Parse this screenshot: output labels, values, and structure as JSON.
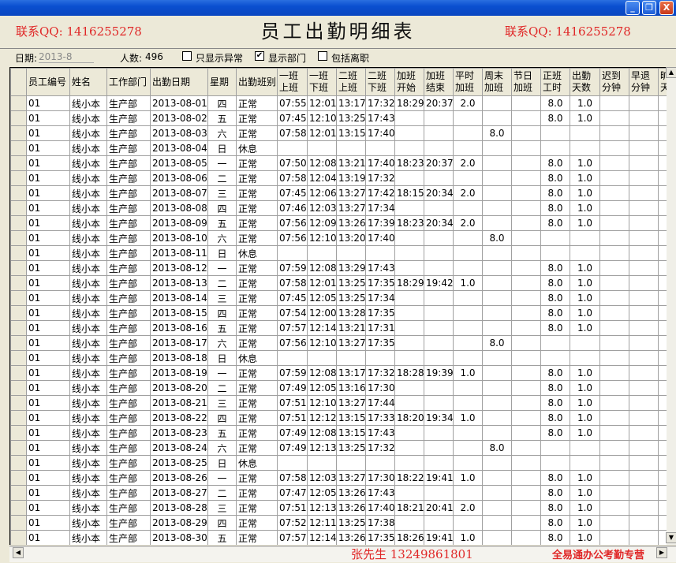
{
  "window": {
    "minimize": "_",
    "restore": "❐",
    "close": "X"
  },
  "title": "员工出勤明细表",
  "filter": {
    "date_label": "日期:",
    "date_value": "2013-8",
    "count_label": "人数:",
    "count_value": "496",
    "options": [
      {
        "label": "只显示异常",
        "checked": false
      },
      {
        "label": "显示部门",
        "checked": true
      },
      {
        "label": "包括离职",
        "checked": false
      }
    ]
  },
  "columns": [
    "员工编号",
    "姓名",
    "工作部门",
    "出勤日期",
    "星期",
    "出勤班别",
    "一班\n上班",
    "一班\n下班",
    "二班\n上班",
    "二班\n下班",
    "加班\n开始",
    "加班\n结束",
    "平时\n加班",
    "周末\n加班",
    "节日\n加班",
    "正班\n工时",
    "出勤\n天数",
    "迟到\n分钟",
    "早退\n分钟",
    "旷工\n天数"
  ],
  "rows": [
    [
      "01",
      "线小本",
      "生产部",
      "2013-08-01",
      "四",
      "正常",
      "07:55",
      "12:01",
      "13:17",
      "17:32",
      "18:29",
      "20:37",
      "2.0",
      "",
      "",
      "8.0",
      "1.0",
      "",
      "",
      ""
    ],
    [
      "01",
      "线小本",
      "生产部",
      "2013-08-02",
      "五",
      "正常",
      "07:45",
      "12:10",
      "13:25",
      "17:43",
      "",
      "",
      "",
      "",
      "",
      "8.0",
      "1.0",
      "",
      "",
      ""
    ],
    [
      "01",
      "线小本",
      "生产部",
      "2013-08-03",
      "六",
      "正常",
      "07:58",
      "12:01",
      "13:15",
      "17:40",
      "",
      "",
      "",
      "8.0",
      "",
      "",
      "",
      "",
      "",
      ""
    ],
    [
      "01",
      "线小本",
      "生产部",
      "2013-08-04",
      "日",
      "休息",
      "",
      "",
      "",
      "",
      "",
      "",
      "",
      "",
      "",
      "",
      "",
      "",
      "",
      ""
    ],
    [
      "01",
      "线小本",
      "生产部",
      "2013-08-05",
      "一",
      "正常",
      "07:50",
      "12:08",
      "13:21",
      "17:40",
      "18:23",
      "20:37",
      "2.0",
      "",
      "",
      "8.0",
      "1.0",
      "",
      "",
      ""
    ],
    [
      "01",
      "线小本",
      "生产部",
      "2013-08-06",
      "二",
      "正常",
      "07:58",
      "12:04",
      "13:19",
      "17:32",
      "",
      "",
      "",
      "",
      "",
      "8.0",
      "1.0",
      "",
      "",
      ""
    ],
    [
      "01",
      "线小本",
      "生产部",
      "2013-08-07",
      "三",
      "正常",
      "07:45",
      "12:06",
      "13:27",
      "17:42",
      "18:15",
      "20:34",
      "2.0",
      "",
      "",
      "8.0",
      "1.0",
      "",
      "",
      ""
    ],
    [
      "01",
      "线小本",
      "生产部",
      "2013-08-08",
      "四",
      "正常",
      "07:46",
      "12:03",
      "13:27",
      "17:34",
      "",
      "",
      "",
      "",
      "",
      "8.0",
      "1.0",
      "",
      "",
      ""
    ],
    [
      "01",
      "线小本",
      "生产部",
      "2013-08-09",
      "五",
      "正常",
      "07:56",
      "12:09",
      "13:26",
      "17:39",
      "18:23",
      "20:34",
      "2.0",
      "",
      "",
      "8.0",
      "1.0",
      "",
      "",
      ""
    ],
    [
      "01",
      "线小本",
      "生产部",
      "2013-08-10",
      "六",
      "正常",
      "07:56",
      "12:10",
      "13:20",
      "17:40",
      "",
      "",
      "",
      "8.0",
      "",
      "",
      "",
      "",
      "",
      ""
    ],
    [
      "01",
      "线小本",
      "生产部",
      "2013-08-11",
      "日",
      "休息",
      "",
      "",
      "",
      "",
      "",
      "",
      "",
      "",
      "",
      "",
      "",
      "",
      "",
      ""
    ],
    [
      "01",
      "线小本",
      "生产部",
      "2013-08-12",
      "一",
      "正常",
      "07:59",
      "12:08",
      "13:29",
      "17:43",
      "",
      "",
      "",
      "",
      "",
      "8.0",
      "1.0",
      "",
      "",
      ""
    ],
    [
      "01",
      "线小本",
      "生产部",
      "2013-08-13",
      "二",
      "正常",
      "07:58",
      "12:01",
      "13:25",
      "17:35",
      "18:29",
      "19:42",
      "1.0",
      "",
      "",
      "8.0",
      "1.0",
      "",
      "",
      ""
    ],
    [
      "01",
      "线小本",
      "生产部",
      "2013-08-14",
      "三",
      "正常",
      "07:45",
      "12:05",
      "13:25",
      "17:34",
      "",
      "",
      "",
      "",
      "",
      "8.0",
      "1.0",
      "",
      "",
      ""
    ],
    [
      "01",
      "线小本",
      "生产部",
      "2013-08-15",
      "四",
      "正常",
      "07:54",
      "12:00",
      "13:28",
      "17:35",
      "",
      "",
      "",
      "",
      "",
      "8.0",
      "1.0",
      "",
      "",
      ""
    ],
    [
      "01",
      "线小本",
      "生产部",
      "2013-08-16",
      "五",
      "正常",
      "07:57",
      "12:14",
      "13:21",
      "17:31",
      "",
      "",
      "",
      "",
      "",
      "8.0",
      "1.0",
      "",
      "",
      ""
    ],
    [
      "01",
      "线小本",
      "生产部",
      "2013-08-17",
      "六",
      "正常",
      "07:56",
      "12:10",
      "13:27",
      "17:35",
      "",
      "",
      "",
      "8.0",
      "",
      "",
      "",
      "",
      "",
      ""
    ],
    [
      "01",
      "线小本",
      "生产部",
      "2013-08-18",
      "日",
      "休息",
      "",
      "",
      "",
      "",
      "",
      "",
      "",
      "",
      "",
      "",
      "",
      "",
      "",
      ""
    ],
    [
      "01",
      "线小本",
      "生产部",
      "2013-08-19",
      "一",
      "正常",
      "07:59",
      "12:08",
      "13:17",
      "17:32",
      "18:28",
      "19:39",
      "1.0",
      "",
      "",
      "8.0",
      "1.0",
      "",
      "",
      ""
    ],
    [
      "01",
      "线小本",
      "生产部",
      "2013-08-20",
      "二",
      "正常",
      "07:49",
      "12:05",
      "13:16",
      "17:30",
      "",
      "",
      "",
      "",
      "",
      "8.0",
      "1.0",
      "",
      "",
      ""
    ],
    [
      "01",
      "线小本",
      "生产部",
      "2013-08-21",
      "三",
      "正常",
      "07:51",
      "12:10",
      "13:27",
      "17:44",
      "",
      "",
      "",
      "",
      "",
      "8.0",
      "1.0",
      "",
      "",
      ""
    ],
    [
      "01",
      "线小本",
      "生产部",
      "2013-08-22",
      "四",
      "正常",
      "07:51",
      "12:12",
      "13:15",
      "17:33",
      "18:20",
      "19:34",
      "1.0",
      "",
      "",
      "8.0",
      "1.0",
      "",
      "",
      ""
    ],
    [
      "01",
      "线小本",
      "生产部",
      "2013-08-23",
      "五",
      "正常",
      "07:49",
      "12:08",
      "13:15",
      "17:43",
      "",
      "",
      "",
      "",
      "",
      "8.0",
      "1.0",
      "",
      "",
      ""
    ],
    [
      "01",
      "线小本",
      "生产部",
      "2013-08-24",
      "六",
      "正常",
      "07:49",
      "12:13",
      "13:25",
      "17:32",
      "",
      "",
      "",
      "8.0",
      "",
      "",
      "",
      "",
      "",
      ""
    ],
    [
      "01",
      "线小本",
      "生产部",
      "2013-08-25",
      "日",
      "休息",
      "",
      "",
      "",
      "",
      "",
      "",
      "",
      "",
      "",
      "",
      "",
      "",
      "",
      ""
    ],
    [
      "01",
      "线小本",
      "生产部",
      "2013-08-26",
      "一",
      "正常",
      "07:58",
      "12:03",
      "13:27",
      "17:30",
      "18:22",
      "19:41",
      "1.0",
      "",
      "",
      "8.0",
      "1.0",
      "",
      "",
      ""
    ],
    [
      "01",
      "线小本",
      "生产部",
      "2013-08-27",
      "二",
      "正常",
      "07:47",
      "12:05",
      "13:26",
      "17:43",
      "",
      "",
      "",
      "",
      "",
      "8.0",
      "1.0",
      "",
      "",
      ""
    ],
    [
      "01",
      "线小本",
      "生产部",
      "2013-08-28",
      "三",
      "正常",
      "07:51",
      "12:13",
      "13:26",
      "17:40",
      "18:21",
      "20:41",
      "2.0",
      "",
      "",
      "8.0",
      "1.0",
      "",
      "",
      ""
    ],
    [
      "01",
      "线小本",
      "生产部",
      "2013-08-29",
      "四",
      "正常",
      "07:52",
      "12:11",
      "13:25",
      "17:38",
      "",
      "",
      "",
      "",
      "",
      "8.0",
      "1.0",
      "",
      "",
      ""
    ],
    [
      "01",
      "线小本",
      "生产部",
      "2013-08-30",
      "五",
      "正常",
      "07:57",
      "12:14",
      "13:26",
      "17:35",
      "18:26",
      "19:41",
      "1.0",
      "",
      "",
      "8.0",
      "1.0",
      "",
      "",
      ""
    ]
  ],
  "watermarks": {
    "qq1": "联系QQ: 1416255278",
    "qq2": "联系QQ: 1416255278",
    "contact": "张先生 13249861801",
    "brand": "全易通办公考勤专营"
  }
}
